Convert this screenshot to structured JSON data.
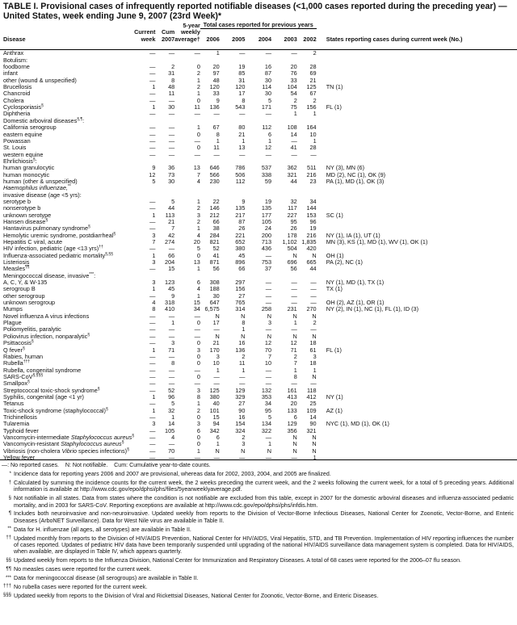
{
  "title": "TABLE I. Provisional cases of infrequently reported notifiable diseases (<1,000 cases reported during the preceding year) — United States, week ending June 9, 2007 (23rd Week)*",
  "header": {
    "disease": "Disease",
    "current_week": [
      "Current",
      "week"
    ],
    "cum": [
      "Cum",
      "2007"
    ],
    "avg": [
      "5-year",
      "weekly",
      "average†"
    ],
    "total_prev": "Total cases reported for previous years",
    "years": [
      "2006",
      "2005",
      "2004",
      "2003",
      "2002"
    ],
    "states": "States reporting cases during current week (No.)"
  },
  "rows": [
    {
      "l": [
        [
          "Anthrax"
        ]
      ],
      "v": [
        "—",
        "—",
        "—",
        "1",
        "—",
        "—",
        "—",
        "2"
      ],
      "s": ""
    },
    {
      "l": [
        [
          "Botulism:"
        ]
      ]
    },
    {
      "l": [
        [
          "foodborne"
        ]
      ],
      "ind": 1,
      "v": [
        "—",
        "2",
        "0",
        "20",
        "19",
        "16",
        "20",
        "28"
      ],
      "s": ""
    },
    {
      "l": [
        [
          "infant"
        ]
      ],
      "ind": 1,
      "v": [
        "—",
        "31",
        "2",
        "97",
        "85",
        "87",
        "76",
        "69"
      ],
      "s": ""
    },
    {
      "l": [
        [
          "other (wound & unspecified)"
        ]
      ],
      "ind": 1,
      "v": [
        "—",
        "8",
        "1",
        "48",
        "31",
        "30",
        "33",
        "21"
      ],
      "s": ""
    },
    {
      "l": [
        [
          "Brucellosis"
        ]
      ],
      "v": [
        "1",
        "48",
        "2",
        "120",
        "120",
        "114",
        "104",
        "125"
      ],
      "s": "TN (1)"
    },
    {
      "l": [
        [
          "Chancroid"
        ]
      ],
      "v": [
        "—",
        "11",
        "1",
        "33",
        "17",
        "30",
        "54",
        "67"
      ],
      "s": ""
    },
    {
      "l": [
        [
          "Cholera"
        ]
      ],
      "v": [
        "—",
        "—",
        "0",
        "9",
        "8",
        "5",
        "2",
        "2"
      ],
      "s": ""
    },
    {
      "l": [
        [
          "Cyclosporiasis"
        ],
        [
          "§",
          "sup"
        ]
      ],
      "v": [
        "1",
        "30",
        "11",
        "136",
        "543",
        "171",
        "75",
        "156"
      ],
      "s": "FL (1)"
    },
    {
      "l": [
        [
          "Diphtheria"
        ]
      ],
      "v": [
        "—",
        "—",
        "—",
        "—",
        "—",
        "—",
        "1",
        "1"
      ],
      "s": ""
    },
    {
      "l": [
        [
          "Domestic arboviral diseases"
        ],
        [
          "§,¶",
          "sup"
        ],
        [
          ":"
        ]
      ]
    },
    {
      "l": [
        [
          "California serogroup"
        ]
      ],
      "ind": 1,
      "v": [
        "—",
        "—",
        "1",
        "67",
        "80",
        "112",
        "108",
        "164"
      ],
      "s": ""
    },
    {
      "l": [
        [
          "eastern equine"
        ]
      ],
      "ind": 1,
      "v": [
        "—",
        "—",
        "0",
        "8",
        "21",
        "6",
        "14",
        "10"
      ],
      "s": ""
    },
    {
      "l": [
        [
          "Powassan"
        ]
      ],
      "ind": 1,
      "v": [
        "—",
        "—",
        "—",
        "1",
        "1",
        "1",
        "—",
        "1"
      ],
      "s": ""
    },
    {
      "l": [
        [
          "St. Louis"
        ]
      ],
      "ind": 1,
      "v": [
        "—",
        "—",
        "0",
        "11",
        "13",
        "12",
        "41",
        "28"
      ],
      "s": ""
    },
    {
      "l": [
        [
          "western equine"
        ]
      ],
      "ind": 1,
      "v": [
        "—",
        "—",
        "—",
        "—",
        "—",
        "—",
        "—",
        "—"
      ],
      "s": ""
    },
    {
      "l": [
        [
          "Ehrlichiosis"
        ],
        [
          "§",
          "sup"
        ],
        [
          ":"
        ]
      ]
    },
    {
      "l": [
        [
          "human granulocytic"
        ]
      ],
      "ind": 1,
      "v": [
        "9",
        "36",
        "13",
        "646",
        "786",
        "537",
        "362",
        "511"
      ],
      "s": "NY (3), MN (6)"
    },
    {
      "l": [
        [
          "human monocytic"
        ]
      ],
      "ind": 1,
      "v": [
        "12",
        "73",
        "7",
        "566",
        "506",
        "338",
        "321",
        "216"
      ],
      "s": "MD (2), NC (1), OK (9)"
    },
    {
      "l": [
        [
          "human (other & unspecified)"
        ]
      ],
      "ind": 1,
      "v": [
        "5",
        "30",
        "4",
        "230",
        "112",
        "59",
        "44",
        "23"
      ],
      "s": "PA (1), MD (1), OK (3)"
    },
    {
      "l": [
        [
          "Haemophilus influenzae,",
          "i"
        ],
        [
          "**",
          "sup"
        ]
      ]
    },
    {
      "l": [
        [
          "invasive disease (age <5 yrs):"
        ]
      ],
      "ind": 0.5
    },
    {
      "l": [
        [
          "serotype b"
        ]
      ],
      "ind": 1,
      "v": [
        "—",
        "5",
        "1",
        "22",
        "9",
        "19",
        "32",
        "34"
      ],
      "s": ""
    },
    {
      "l": [
        [
          "nonserotype b"
        ]
      ],
      "ind": 1,
      "v": [
        "—",
        "44",
        "2",
        "146",
        "135",
        "135",
        "117",
        "144"
      ],
      "s": ""
    },
    {
      "l": [
        [
          "unknown serotype"
        ]
      ],
      "ind": 1,
      "v": [
        "1",
        "113",
        "3",
        "212",
        "217",
        "177",
        "227",
        "153"
      ],
      "s": "SC (1)"
    },
    {
      "l": [
        [
          "Hansen disease"
        ],
        [
          "§",
          "sup"
        ]
      ],
      "v": [
        "—",
        "21",
        "2",
        "66",
        "87",
        "105",
        "95",
        "96"
      ],
      "s": ""
    },
    {
      "l": [
        [
          "Hantavirus pulmonary syndrome"
        ],
        [
          "§",
          "sup"
        ]
      ],
      "v": [
        "—",
        "7",
        "1",
        "38",
        "26",
        "24",
        "26",
        "19"
      ],
      "s": ""
    },
    {
      "l": [
        [
          "Hemolytic uremic syndrome, postdiarrheal"
        ],
        [
          "§",
          "sup"
        ]
      ],
      "v": [
        "3",
        "42",
        "4",
        "284",
        "221",
        "200",
        "178",
        "216"
      ],
      "s": "NY (1), IA (1), UT (1)"
    },
    {
      "l": [
        [
          "Hepatitis C viral, acute"
        ]
      ],
      "v": [
        "7",
        "274",
        "20",
        "821",
        "652",
        "713",
        "1,102",
        "1,835"
      ],
      "s": "MN (3), KS (1), MD (1), WV (1), OK (1)"
    },
    {
      "l": [
        [
          "HIV infection, pediatric (age <13 yrs)"
        ],
        [
          "††",
          "sup"
        ]
      ],
      "v": [
        "—",
        "—",
        "5",
        "52",
        "380",
        "436",
        "504",
        "420"
      ],
      "s": ""
    },
    {
      "l": [
        [
          "Influenza-associated pediatric mortality"
        ],
        [
          "§,§§",
          "sup"
        ]
      ],
      "v": [
        "1",
        "66",
        "0",
        "41",
        "45",
        "—",
        "N",
        "N"
      ],
      "s": "OH (1)"
    },
    {
      "l": [
        [
          "Listeriosis"
        ]
      ],
      "v": [
        "3",
        "204",
        "13",
        "871",
        "896",
        "753",
        "696",
        "665"
      ],
      "s": "PA (2), NC (1)"
    },
    {
      "l": [
        [
          "Measles"
        ],
        [
          "¶¶",
          "sup"
        ]
      ],
      "v": [
        "—",
        "15",
        "1",
        "56",
        "66",
        "37",
        "56",
        "44"
      ],
      "s": ""
    },
    {
      "l": [
        [
          "Meningococcal disease, invasive"
        ],
        [
          "***",
          "sup"
        ],
        [
          ":"
        ]
      ]
    },
    {
      "l": [
        [
          "A, C, Y, & W-135"
        ]
      ],
      "ind": 1,
      "v": [
        "3",
        "123",
        "6",
        "308",
        "297",
        "—",
        "—",
        "—"
      ],
      "s": "NY (1), MD (1), TX (1)"
    },
    {
      "l": [
        [
          "serogroup B"
        ]
      ],
      "ind": 1,
      "v": [
        "1",
        "45",
        "4",
        "188",
        "156",
        "—",
        "—",
        "—"
      ],
      "s": "TX (1)"
    },
    {
      "l": [
        [
          "other serogroup"
        ]
      ],
      "ind": 1,
      "v": [
        "—",
        "9",
        "1",
        "30",
        "27",
        "—",
        "—",
        "—"
      ],
      "s": ""
    },
    {
      "l": [
        [
          "unknown serogroup"
        ]
      ],
      "ind": 1,
      "v": [
        "4",
        "318",
        "15",
        "647",
        "765",
        "—",
        "—",
        "—"
      ],
      "s": "OH (2), AZ (1), OR (1)"
    },
    {
      "l": [
        [
          "Mumps"
        ]
      ],
      "v": [
        "8",
        "410",
        "34",
        "6,575",
        "314",
        "258",
        "231",
        "270"
      ],
      "s": "NY (2), IN (1), NC (1), FL (1), ID (3)"
    },
    {
      "l": [
        [
          "Novel influenza A virus infections"
        ]
      ],
      "v": [
        "—",
        "—",
        "—",
        "N",
        "N",
        "N",
        "N",
        "N"
      ],
      "s": ""
    },
    {
      "l": [
        [
          "Plague"
        ]
      ],
      "v": [
        "—",
        "1",
        "0",
        "17",
        "8",
        "3",
        "1",
        "2"
      ],
      "s": ""
    },
    {
      "l": [
        [
          "Poliomyelitis, paralytic"
        ]
      ],
      "v": [
        "—",
        "—",
        "—",
        "—",
        "1",
        "—",
        "—",
        "—"
      ],
      "s": ""
    },
    {
      "l": [
        [
          "Poliovirus infection, nonparalytic"
        ],
        [
          "§",
          "sup"
        ]
      ],
      "v": [
        "—",
        "—",
        "—",
        "N",
        "N",
        "N",
        "N",
        "N"
      ],
      "s": ""
    },
    {
      "l": [
        [
          "Psittacosis"
        ],
        [
          "§",
          "sup"
        ]
      ],
      "v": [
        "—",
        "3",
        "0",
        "21",
        "16",
        "12",
        "12",
        "18"
      ],
      "s": ""
    },
    {
      "l": [
        [
          "Q fever"
        ],
        [
          "§",
          "sup"
        ]
      ],
      "v": [
        "1",
        "71",
        "3",
        "170",
        "136",
        "70",
        "71",
        "61"
      ],
      "s": "FL (1)"
    },
    {
      "l": [
        [
          "Rabies, human"
        ]
      ],
      "v": [
        "—",
        "—",
        "0",
        "3",
        "2",
        "7",
        "2",
        "3"
      ],
      "s": ""
    },
    {
      "l": [
        [
          "Rubella"
        ],
        [
          "†††",
          "sup"
        ]
      ],
      "v": [
        "—",
        "8",
        "0",
        "10",
        "11",
        "10",
        "7",
        "18"
      ],
      "s": ""
    },
    {
      "l": [
        [
          "Rubella, congenital syndrome"
        ]
      ],
      "v": [
        "—",
        "—",
        "—",
        "1",
        "1",
        "—",
        "1",
        "1"
      ],
      "s": ""
    },
    {
      "l": [
        [
          "SARS-CoV"
        ],
        [
          "§,§§§",
          "sup"
        ]
      ],
      "v": [
        "—",
        "—",
        "0",
        "—",
        "—",
        "—",
        "8",
        "N"
      ],
      "s": ""
    },
    {
      "l": [
        [
          "Smallpox"
        ],
        [
          "§",
          "sup"
        ]
      ],
      "v": [
        "—",
        "—",
        "—",
        "—",
        "—",
        "—",
        "—",
        "—"
      ],
      "s": ""
    },
    {
      "l": [
        [
          "Streptococcal toxic-shock syndrome"
        ],
        [
          "§",
          "sup"
        ]
      ],
      "v": [
        "—",
        "52",
        "3",
        "125",
        "129",
        "132",
        "161",
        "118"
      ],
      "s": ""
    },
    {
      "l": [
        [
          "Syphilis, congenital (age <1 yr)"
        ]
      ],
      "v": [
        "1",
        "96",
        "8",
        "380",
        "329",
        "353",
        "413",
        "412"
      ],
      "s": "NY (1)"
    },
    {
      "l": [
        [
          "Tetanus"
        ]
      ],
      "v": [
        "—",
        "5",
        "1",
        "40",
        "27",
        "34",
        "20",
        "25"
      ],
      "s": ""
    },
    {
      "l": [
        [
          "Toxic-shock syndrome (staphylococcal)"
        ],
        [
          "§",
          "sup"
        ]
      ],
      "v": [
        "1",
        "32",
        "2",
        "101",
        "90",
        "95",
        "133",
        "109"
      ],
      "s": "AZ (1)"
    },
    {
      "l": [
        [
          "Trichinellosis"
        ]
      ],
      "v": [
        "—",
        "1",
        "0",
        "15",
        "16",
        "5",
        "6",
        "14"
      ],
      "s": ""
    },
    {
      "l": [
        [
          "Tularemia"
        ]
      ],
      "v": [
        "3",
        "14",
        "3",
        "94",
        "154",
        "134",
        "129",
        "90"
      ],
      "s": "NYC (1), MD (1), OK (1)"
    },
    {
      "l": [
        [
          "Typhoid fever"
        ]
      ],
      "v": [
        "—",
        "105",
        "6",
        "342",
        "324",
        "322",
        "356",
        "321"
      ],
      "s": ""
    },
    {
      "l": [
        [
          "Vancomycin-intermediate "
        ],
        [
          "Staphylococcus aureus",
          "i"
        ],
        [
          "§",
          "sup"
        ]
      ],
      "v": [
        "—",
        "4",
        "0",
        "6",
        "2",
        "—",
        "N",
        "N"
      ],
      "s": ""
    },
    {
      "l": [
        [
          "Vancomycin-resistant "
        ],
        [
          "Staphylococcus aureus",
          "i"
        ],
        [
          "§",
          "sup"
        ]
      ],
      "v": [
        "—",
        "—",
        "0",
        "1",
        "3",
        "1",
        "N",
        "N"
      ],
      "s": ""
    },
    {
      "l": [
        [
          "Vibriosis (non-cholera "
        ],
        [
          "Vibrio",
          "i"
        ],
        [
          " species infections)"
        ],
        [
          "§",
          "sup"
        ]
      ],
      "v": [
        "—",
        "70",
        "1",
        "N",
        "N",
        "N",
        "N",
        "N"
      ],
      "s": ""
    },
    {
      "l": [
        [
          "Yellow fever"
        ]
      ],
      "v": [
        "—",
        "—",
        "—",
        "—",
        "—",
        "—",
        "—",
        "1"
      ],
      "s": ""
    }
  ],
  "legend": "—: No reported cases.    N: Not notifiable.    Cum: Cumulative year-to-date counts.",
  "footnotes": [
    {
      "m": "*",
      "t": "Incidence data for reporting years 2006 and 2007 are provisional, whereas data for 2002, 2003, 2004, and 2005 are finalized."
    },
    {
      "m": "†",
      "t": "Calculated by summing the incidence counts for the current week, the 2 weeks preceding the current week, and the 2 weeks following the current week, for a total of 5 preceding years. Additional information is available at http://www.cdc.gov/epo/dphsi/phs/files/5yearweeklyaverage.pdf."
    },
    {
      "m": "§",
      "t": "Not notifiable in all states. Data from states where the condition is not notifiable are excluded from this table, except in 2007 for the domestic arboviral diseases and influenza-associated pediatric mortality, and in 2003 for SARS-CoV. Reporting exceptions are available at http://www.cdc.gov/epo/dphsi/phs/infdis.htm."
    },
    {
      "m": "¶",
      "t": "Includes both neuroinvasive and non-neuroinvasive. Updated weekly from reports to the Division of Vector-Borne Infectious Diseases, National Center for Zoonotic, Vector-Borne, and Enteric Diseases (ArboNET Surveillance). Data for West Nile virus are available in Table II."
    },
    {
      "m": "**",
      "t": "Data for H. influenzae (all ages, all serotypes) are available in Table II."
    },
    {
      "m": "††",
      "t": "Updated monthly from reports to the Division of HIV/AIDS Prevention, National Center for HIV/AIDS, Viral Hepatitis, STD, and TB Prevention. Implementation of HIV reporting influences the number of cases reported. Updates of pediatric HIV data have been temporarily suspended until upgrading of the national HIV/AIDS surveillance data management system is completed. Data for HIV/AIDS, when available, are displayed in Table IV, which appears quarterly."
    },
    {
      "m": "§§",
      "t": "Updated weekly from reports to the Influenza Division, National Center for Immunization and Respiratory Diseases. A total of 68 cases were reported for the 2006–07 flu season."
    },
    {
      "m": "¶¶",
      "t": "No measles cases were reported for the current week."
    },
    {
      "m": "***",
      "t": "Data for meningococcal disease (all serogroups) are available in Table II."
    },
    {
      "m": "†††",
      "t": "No rubella cases were reported for the current week."
    },
    {
      "m": "§§§",
      "t": "Updated weekly from reports to the Division of Viral and Rickettsial Diseases, National Center for Zoonotic, Vector-Borne, and Enteric Diseases."
    }
  ]
}
